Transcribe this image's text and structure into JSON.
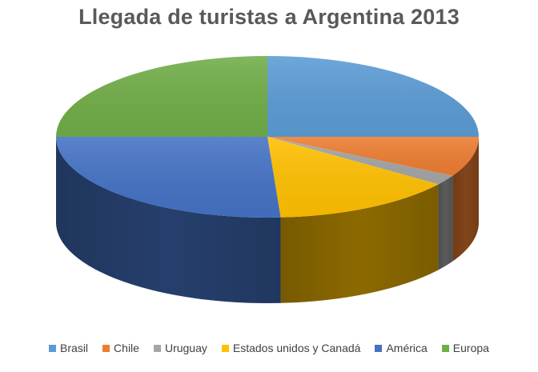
{
  "chart_data": {
    "type": "pie",
    "title": "Llegada de turistas a Argentina 2013",
    "categories": [
      "Brasil",
      "Chile",
      "Uruguay",
      "Estados unidos y Canadá",
      "América",
      "Europa"
    ],
    "values": [
      25,
      8,
      2,
      14,
      26,
      25
    ],
    "colors": [
      "#5B9BD5",
      "#ED7D31",
      "#A5A5A5",
      "#FFC000",
      "#4472C4",
      "#70AD47"
    ],
    "start_angle_deg": 0,
    "three_d": true,
    "legend": "bottom"
  }
}
